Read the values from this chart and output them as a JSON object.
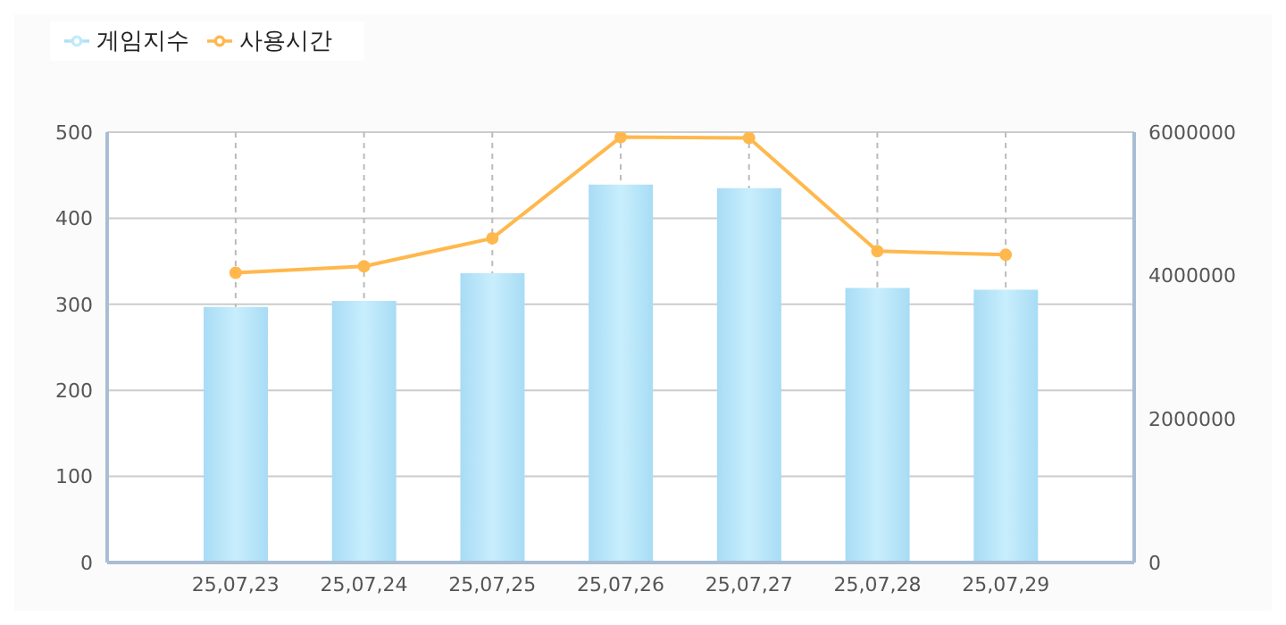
{
  "chart_data": {
    "type": "bar",
    "categories": [
      "25,07,23",
      "25,07,24",
      "25,07,25",
      "25,07,26",
      "25,07,27",
      "25,07,28",
      "25,07,29"
    ],
    "series": [
      {
        "name": "게임지수",
        "color": "#a8dcf5",
        "values": [
          297,
          304,
          336,
          439,
          435,
          319,
          317
        ]
      },
      {
        "name": "사용시간",
        "type": "line",
        "axis": "y2",
        "color": "#ffb84d",
        "values": [
          4040000,
          4130000,
          4520000,
          5930000,
          5920000,
          4340000,
          4290000
        ]
      }
    ],
    "ylim": [
      0,
      500
    ],
    "yticks": [
      0,
      100,
      200,
      300,
      400,
      500
    ],
    "y2lim": [
      0,
      6000000
    ],
    "y2ticks": [
      0,
      2000000,
      4000000,
      6000000
    ],
    "grid": true,
    "legend": "top left",
    "marker": "circle"
  }
}
